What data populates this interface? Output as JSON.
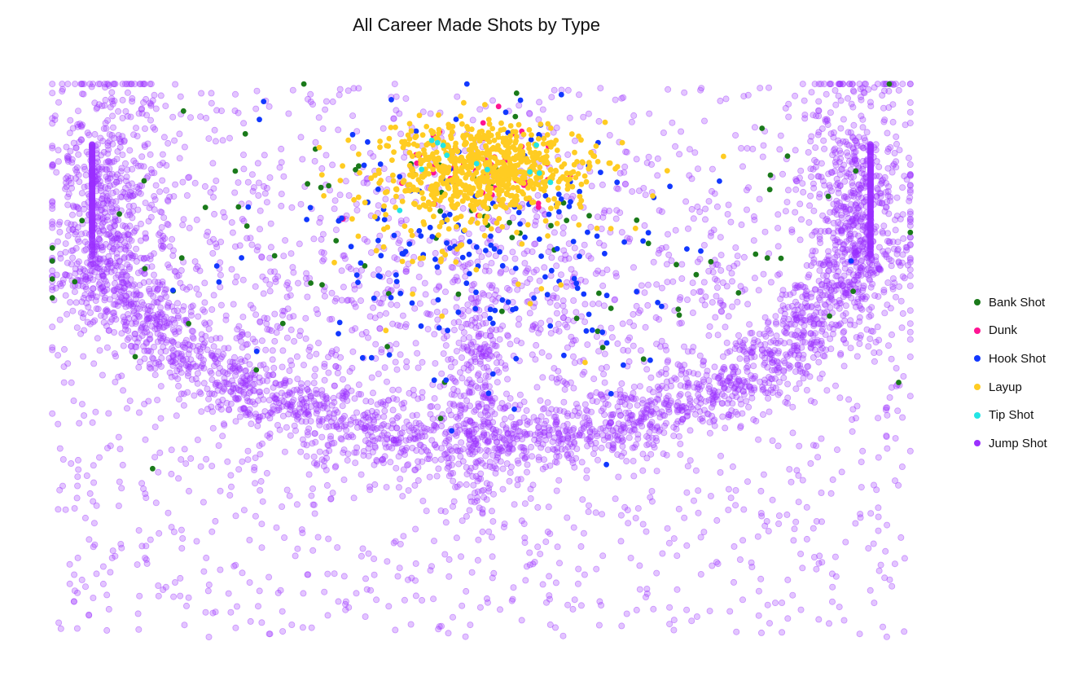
{
  "chart_data": {
    "type": "scatter",
    "title": "All Career Made Shots by Type",
    "xlabel": "",
    "ylabel": "",
    "xlim": [
      -250,
      250
    ],
    "ylim": [
      -50,
      400
    ],
    "axes_visible": false,
    "grid": false,
    "legend_position": "right",
    "series": [
      {
        "name": "Bank Shot",
        "color": "#1a7a1a",
        "clusters": [
          {
            "n": 90,
            "cx": 0,
            "cy": 75,
            "sx": 130,
            "sy": 55
          }
        ],
        "points": [
          [
            -190,
            260
          ]
        ]
      },
      {
        "name": "Dunk",
        "color": "#ff1493",
        "clusters": [
          {
            "n": 60,
            "cx": 0,
            "cy": 20,
            "sx": 25,
            "sy": 15
          }
        ],
        "points": [
          [
            10,
            -30
          ],
          [
            -80,
            60
          ]
        ]
      },
      {
        "name": "Hook Shot",
        "color": "#1238ff",
        "clusters": [
          {
            "n": 180,
            "cx": 0,
            "cy": 75,
            "sx": 60,
            "sy": 55
          }
        ],
        "points": [
          [
            75,
            200
          ]
        ]
      },
      {
        "name": "Layup",
        "color": "#ffcc22",
        "clusters": [
          {
            "n": 700,
            "cx": 0,
            "cy": 20,
            "sx": 30,
            "sy": 18
          },
          {
            "n": 80,
            "cx": 0,
            "cy": 60,
            "sx": 35,
            "sy": 30
          }
        ],
        "points": [
          [
            140,
            10
          ],
          [
            60,
            175
          ],
          [
            -85,
            95
          ]
        ]
      },
      {
        "name": "Tip Shot",
        "color": "#22e5e5",
        "clusters": [
          {
            "n": 12,
            "cx": 0,
            "cy": 15,
            "sx": 20,
            "sy": 12
          }
        ],
        "points": []
      },
      {
        "name": "Jump Shot",
        "color": "#9b30ff",
        "clusters": [
          {
            "n": 2600,
            "shape": "arc",
            "r": 238,
            "spread": 14
          },
          {
            "n": 1500,
            "shape": "uniform-court"
          },
          {
            "n": 700,
            "cx": 0,
            "cy": 120,
            "sx": 120,
            "sy": 60
          },
          {
            "n": 450,
            "cx": -215,
            "cy": 40,
            "sx": 18,
            "sy": 55
          },
          {
            "n": 450,
            "cx": 215,
            "cy": 40,
            "sx": 18,
            "sy": 55
          },
          {
            "n": 250,
            "cx": 0,
            "cy": 200,
            "sx": 10,
            "sy": 60
          }
        ],
        "points": []
      }
    ]
  }
}
